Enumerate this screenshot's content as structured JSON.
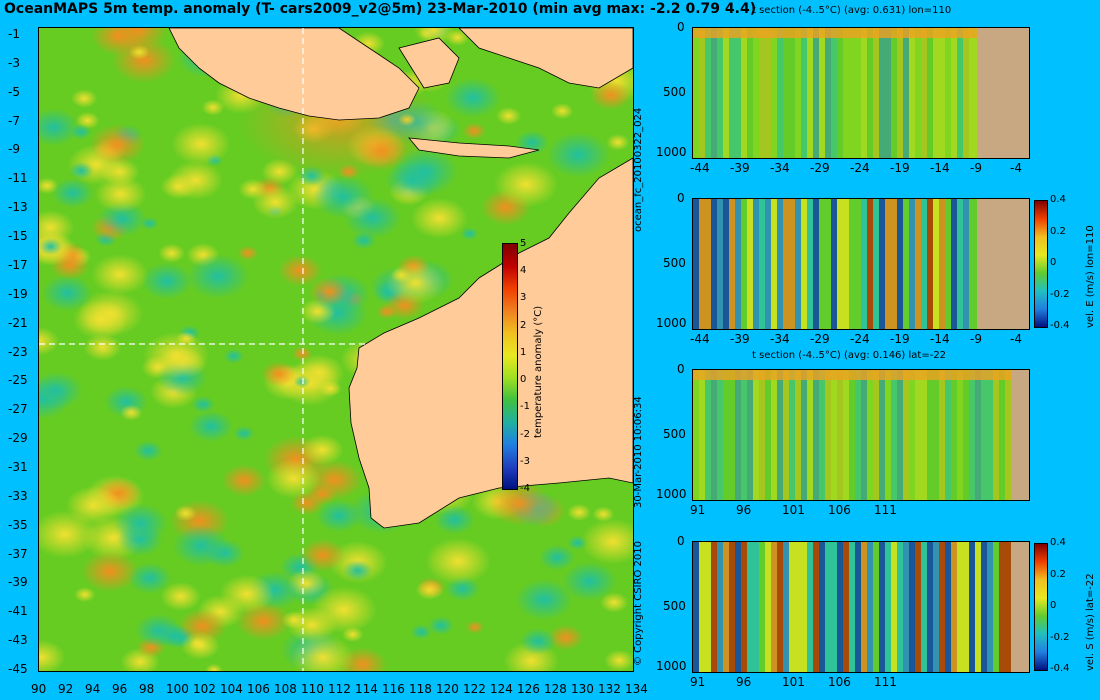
{
  "title": "OceanMAPS 5m temp. anomaly (T- cars2009_v2@5m) 23-Mar-2010 (min avg max: -2.2 0.79 4.4)",
  "map": {
    "lat_ticks": [
      "-1",
      "-3",
      "-5",
      "-7",
      "-9",
      "-11",
      "-13",
      "-15",
      "-17",
      "-19",
      "-21",
      "-23",
      "-25",
      "-27",
      "-29",
      "-31",
      "-33",
      "-35",
      "-37",
      "-39",
      "-41",
      "-43",
      "-45"
    ],
    "lon_ticks": [
      "90",
      "92",
      "94",
      "96",
      "98",
      "100",
      "102",
      "104",
      "106",
      "108",
      "110",
      "112",
      "114",
      "116",
      "118",
      "120",
      "122",
      "124",
      "126",
      "128",
      "130",
      "132",
      "134"
    ],
    "crosshair_lon": 110,
    "crosshair_lat": -22,
    "colorbar": {
      "label": "temperature anomaly (°C)",
      "ticks": [
        "5",
        "4",
        "3",
        "2",
        "1",
        "0",
        "-1",
        "-2",
        "-3",
        "-4"
      ],
      "range": [
        -4,
        5
      ]
    }
  },
  "side_labels": {
    "run": "ocean_fc_20100322_024",
    "timestamp": "30-Mar-2010 10:06:34",
    "copyright": "© Copyright CSIRO 2010"
  },
  "panels": [
    {
      "title": "t section (-4..5°C) (avg: 0.631) lon=110",
      "y_ticks": [
        "0",
        "500",
        "1000"
      ],
      "x_ticks": [
        "-44",
        "-39",
        "-34",
        "-29",
        "-24",
        "-19",
        "-14",
        "-9",
        "-4"
      ],
      "colorbar": null
    },
    {
      "title": "",
      "y_ticks": [
        "0",
        "500",
        "1000"
      ],
      "x_ticks": [
        "-44",
        "-39",
        "-34",
        "-29",
        "-24",
        "-19",
        "-14",
        "-9",
        "-4"
      ],
      "colorbar": {
        "label": "vel. E (m/s) lon=110",
        "ticks": [
          "0.4",
          "0.2",
          "0",
          "-0.2",
          "-0.4"
        ]
      }
    },
    {
      "title": "t section (-4..5°C) (avg: 0.146) lat=-22",
      "y_ticks": [
        "0",
        "500",
        "1000"
      ],
      "x_ticks": [
        "91",
        "96",
        "101",
        "106",
        "111"
      ],
      "colorbar": null
    },
    {
      "title": "",
      "y_ticks": [
        "0",
        "500",
        "1000"
      ],
      "x_ticks": [
        "91",
        "96",
        "101",
        "106",
        "111"
      ],
      "colorbar": {
        "label": "vel. S (m/s) lat=-22",
        "ticks": [
          "0.4",
          "0.2",
          "0",
          "-0.2",
          "-0.4"
        ]
      }
    }
  ],
  "colors": {
    "background": "#00c0ff",
    "land": "#ffcc99",
    "section_land": "#c8a882",
    "anomaly_base": "#66cc22"
  }
}
